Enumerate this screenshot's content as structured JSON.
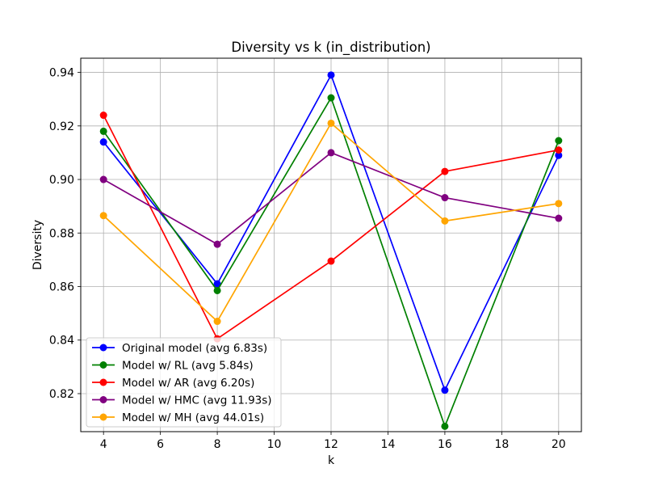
{
  "chart_data": {
    "type": "line",
    "title": "Diversity vs k (in_distribution)",
    "xlabel": "k",
    "ylabel": "Diversity",
    "x": [
      4,
      8,
      12,
      16,
      20
    ],
    "xlim": [
      3.2,
      20.8
    ],
    "ylim": [
      0.8058,
      0.9453
    ],
    "xticks": [
      4,
      6,
      8,
      10,
      12,
      14,
      16,
      18,
      20
    ],
    "yticks": [
      0.82,
      0.84,
      0.86,
      0.88,
      0.9,
      0.92,
      0.94
    ],
    "ytick_labels": [
      "0.82",
      "0.84",
      "0.86",
      "0.88",
      "0.90",
      "0.92",
      "0.94"
    ],
    "grid": true,
    "legend_position": "lower-left",
    "series": [
      {
        "name": "Original model (avg 6.83s)",
        "color": "#0000ff",
        "values": [
          0.914,
          0.861,
          0.939,
          0.8213,
          0.909
        ]
      },
      {
        "name": "Model w/ RL (avg 5.84s)",
        "color": "#008000",
        "values": [
          0.918,
          0.8585,
          0.9305,
          0.8078,
          0.9145
        ]
      },
      {
        "name": "Model w/ AR (avg 6.20s)",
        "color": "#ff0000",
        "values": [
          0.924,
          0.8405,
          0.8695,
          0.903,
          0.911
        ]
      },
      {
        "name": "Model w/ HMC (avg 11.93s)",
        "color": "#800080",
        "values": [
          0.9,
          0.8758,
          0.91,
          0.8932,
          0.8855
        ]
      },
      {
        "name": "Model w/ MH (avg 44.01s)",
        "color": "#ffa500",
        "values": [
          0.8865,
          0.847,
          0.921,
          0.8845,
          0.891
        ]
      }
    ]
  }
}
